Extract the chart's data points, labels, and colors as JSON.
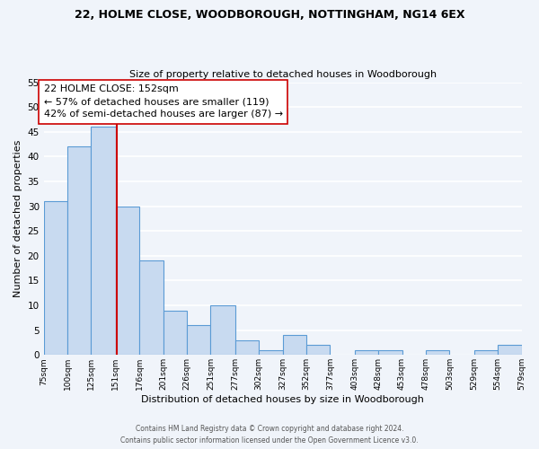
{
  "title1": "22, HOLME CLOSE, WOODBOROUGH, NOTTINGHAM, NG14 6EX",
  "title2": "Size of property relative to detached houses in Woodborough",
  "xlabel": "Distribution of detached houses by size in Woodborough",
  "ylabel": "Number of detached properties",
  "bin_edges": [
    75,
    100,
    125,
    151,
    176,
    201,
    226,
    251,
    277,
    302,
    327,
    352,
    377,
    403,
    428,
    453,
    478,
    503,
    529,
    554,
    579
  ],
  "bin_labels": [
    "75sqm",
    "100sqm",
    "125sqm",
    "151sqm",
    "176sqm",
    "201sqm",
    "226sqm",
    "251sqm",
    "277sqm",
    "302sqm",
    "327sqm",
    "352sqm",
    "377sqm",
    "403sqm",
    "428sqm",
    "453sqm",
    "478sqm",
    "503sqm",
    "529sqm",
    "554sqm",
    "579sqm"
  ],
  "counts": [
    31,
    42,
    46,
    30,
    19,
    9,
    6,
    10,
    3,
    1,
    4,
    2,
    0,
    1,
    1,
    0,
    1,
    0,
    1,
    2
  ],
  "bar_color": "#c8daf0",
  "bar_edge_color": "#5b9bd5",
  "property_size": 152,
  "vline_color": "#cc0000",
  "annotation_line1": "22 HOLME CLOSE: 152sqm",
  "annotation_line2": "← 57% of detached houses are smaller (119)",
  "annotation_line3": "42% of semi-detached houses are larger (87) →",
  "annotation_box_color": "white",
  "annotation_box_edge": "#cc0000",
  "ylim": [
    0,
    55
  ],
  "yticks": [
    0,
    5,
    10,
    15,
    20,
    25,
    30,
    35,
    40,
    45,
    50,
    55
  ],
  "footer1": "Contains HM Land Registry data © Crown copyright and database right 2024.",
  "footer2": "Contains public sector information licensed under the Open Government Licence v3.0.",
  "background_color": "#f0f4fa",
  "grid_color": "white",
  "title1_fontsize": 9,
  "title2_fontsize": 8,
  "ylabel_fontsize": 8,
  "xlabel_fontsize": 8
}
